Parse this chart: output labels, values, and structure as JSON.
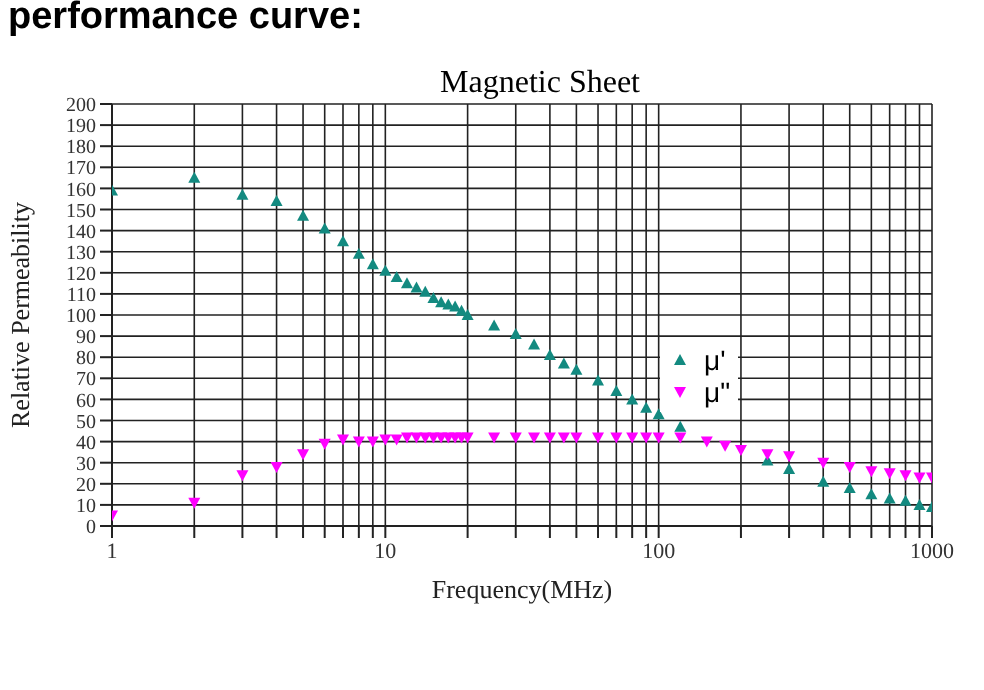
{
  "chart_data": {
    "type": "scatter",
    "title": "Magnetic Sheet",
    "xlabel": "Frequency(MHz)",
    "ylabel": "Relative Permeability",
    "annotations": [
      "performance curve:"
    ],
    "x": [
      1,
      2,
      3,
      4,
      5,
      6,
      7,
      8,
      9,
      10,
      11,
      12,
      13,
      14,
      15,
      16,
      17,
      18,
      19,
      20,
      25,
      30,
      35,
      40,
      45,
      50,
      60,
      70,
      80,
      90,
      100,
      120,
      150,
      175,
      200,
      250,
      300,
      400,
      500,
      600,
      700,
      800,
      900,
      1000
    ],
    "series": [
      {
        "name": "μ'",
        "color": "#138a80",
        "marker": "triangle",
        "values": [
          159,
          165,
          157,
          154,
          147,
          141,
          135,
          129,
          124,
          121,
          118,
          115,
          113,
          111,
          108,
          106,
          105,
          104,
          102,
          100,
          95,
          91,
          86,
          81,
          77,
          74,
          69,
          64,
          60,
          56,
          53,
          47,
          null,
          null,
          null,
          31,
          27,
          21,
          18,
          15,
          13,
          12,
          10,
          9
        ]
      },
      {
        "name": "μ\"",
        "color": "#ff00ff",
        "marker": "triangle-down",
        "values": [
          5,
          11,
          24,
          28,
          34,
          39,
          41,
          40,
          40,
          41,
          41,
          42,
          42,
          42,
          42,
          42,
          42,
          42,
          42,
          42,
          42,
          42,
          42,
          42,
          42,
          42,
          42,
          42,
          42,
          42,
          42,
          42,
          40,
          38,
          36,
          34,
          33,
          30,
          28,
          26,
          25,
          24,
          23,
          23
        ]
      }
    ],
    "log": "x",
    "xlim": [
      1,
      1000
    ],
    "ylim": [
      0,
      200
    ],
    "xticks": [
      1,
      {
        "value": 2,
        "label": null
      },
      {
        "value": 3,
        "label": null
      },
      {
        "value": 4,
        "label": null
      },
      {
        "value": 5,
        "label": null
      },
      {
        "value": 6,
        "label": null
      },
      {
        "value": 7,
        "label": null
      },
      {
        "value": 8,
        "label": null
      },
      {
        "value": 9,
        "label": null
      },
      10,
      {
        "value": 20,
        "label": null
      },
      {
        "value": 30,
        "label": null
      },
      {
        "value": 40,
        "label": null
      },
      {
        "value": 50,
        "label": null
      },
      {
        "value": 60,
        "label": null
      },
      {
        "value": 70,
        "label": null
      },
      {
        "value": 80,
        "label": null
      },
      {
        "value": 90,
        "label": null
      },
      100,
      {
        "value": 200,
        "label": null
      },
      {
        "value": 300,
        "label": null
      },
      {
        "value": 400,
        "label": null
      },
      {
        "value": 500,
        "label": null
      },
      {
        "value": 600,
        "label": null
      },
      {
        "value": 700,
        "label": null
      },
      {
        "value": 800,
        "label": null
      },
      {
        "value": 900,
        "label": null
      },
      1000
    ],
    "yticks": [
      0,
      10,
      20,
      30,
      40,
      50,
      60,
      70,
      80,
      90,
      100,
      110,
      120,
      130,
      140,
      150,
      160,
      170,
      180,
      190,
      200
    ],
    "grid": true,
    "legend": "right"
  }
}
